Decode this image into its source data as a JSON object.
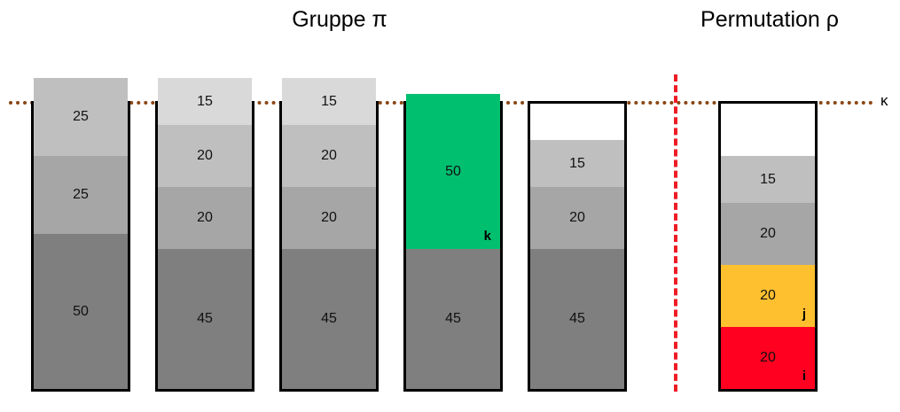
{
  "headings": {
    "group": "Gruppe π",
    "permutation": "Permutation ρ"
  },
  "threshold_label": "κ",
  "colors": {
    "threshold_line": "#8b4513",
    "divider": "#ee1c25",
    "light": "#d9d9d9",
    "mid_light": "#bfbfbf",
    "mid": "#a6a6a6",
    "dark": "#7f7f7f",
    "green": "#00c070",
    "yellow": "#ffc02f",
    "red": "#ff0020"
  },
  "group_columns": [
    {
      "segments": [
        {
          "value": "50",
          "color": "#7f7f7f"
        },
        {
          "value": "25",
          "color": "#a6a6a6"
        },
        {
          "value": "25",
          "color": "#bfbfbf"
        }
      ]
    },
    {
      "segments": [
        {
          "value": "45",
          "color": "#7f7f7f"
        },
        {
          "value": "20",
          "color": "#a6a6a6"
        },
        {
          "value": "20",
          "color": "#bfbfbf"
        },
        {
          "value": "15",
          "color": "#d9d9d9"
        }
      ]
    },
    {
      "segments": [
        {
          "value": "45",
          "color": "#7f7f7f"
        },
        {
          "value": "20",
          "color": "#a6a6a6"
        },
        {
          "value": "20",
          "color": "#bfbfbf"
        },
        {
          "value": "15",
          "color": "#d9d9d9"
        }
      ]
    },
    {
      "segments": [
        {
          "value": "45",
          "color": "#7f7f7f"
        },
        {
          "value": "50",
          "color": "#00c070",
          "tag": "k"
        }
      ]
    },
    {
      "segments": [
        {
          "value": "45",
          "color": "#7f7f7f"
        },
        {
          "value": "20",
          "color": "#a6a6a6"
        },
        {
          "value": "15",
          "color": "#bfbfbf"
        }
      ]
    }
  ],
  "permutation_column": {
    "segments": [
      {
        "value": "20",
        "color": "#ff0020",
        "tag": "i"
      },
      {
        "value": "20",
        "color": "#ffc02f",
        "tag": "j"
      },
      {
        "value": "20",
        "color": "#a6a6a6"
      },
      {
        "value": "15",
        "color": "#bfbfbf"
      }
    ]
  }
}
